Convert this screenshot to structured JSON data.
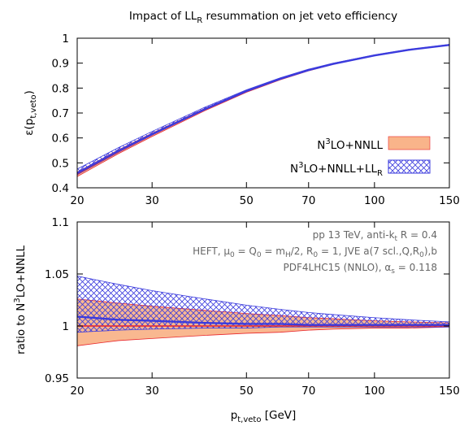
{
  "title_main": "Impact of LL",
  "title_sub": "R",
  "title_rest": " resummation on jet veto efficiency",
  "xlabel_main": "p",
  "xlabel_sub": "t,veto",
  "xlabel_rest": " [GeV]",
  "top_ylabel_main": "ε(p",
  "top_ylabel_sub": "t,veto",
  "top_ylabel_rest": ")",
  "bottom_ylabel_main": "ratio to N",
  "bottom_ylabel_sup": "3",
  "bottom_ylabel_rest": "LO+NNLL",
  "legend": {
    "entry1": {
      "pre": "N",
      "sup": "3",
      "post": "LO+NNLL"
    },
    "entry2": {
      "pre": "N",
      "sup": "3",
      "post": "LO+NNLL+LL",
      "sub": "R"
    }
  },
  "annotations": {
    "line1": {
      "a": "pp 13 TeV, anti-k",
      "b": "t",
      "c": " R = 0.4"
    },
    "line2": {
      "a": "HEFT, μ",
      "b": "0",
      "c": " = Q",
      "d": "0",
      "e": " = m",
      "f": "H",
      "g": "/2, R",
      "h": "0",
      "i": " = 1, JVE a(7 scl.,Q,R",
      "j": "0",
      "k": "),b"
    },
    "line3": {
      "a": "PDF4LHC15 (NNLO), α",
      "b": "s",
      "c": " = 0.118"
    }
  },
  "colors": {
    "nnll_fill": "#f9b48a",
    "nnll_line": "#e8262b",
    "llr_line": "#3b3bdd",
    "llr_hatch": "#3b3bdd",
    "annotation_text": "#666666"
  },
  "chart_data": [
    {
      "type": "area",
      "panel": "top",
      "xscale": "log",
      "xlim": [
        20,
        150
      ],
      "ylim": [
        0.4,
        1.0
      ],
      "x_ticks": [
        "20",
        "30",
        "50",
        "70",
        "100",
        "150"
      ],
      "y_ticks": [
        "0.4",
        "0.5",
        "0.6",
        "0.7",
        "0.8",
        "0.9",
        "1"
      ],
      "x": [
        20,
        25,
        30,
        40,
        50,
        60,
        70,
        80,
        100,
        120,
        150
      ],
      "series": [
        {
          "name": "N3LO+NNLL",
          "central": [
            0.455,
            0.545,
            0.613,
            0.715,
            0.787,
            0.836,
            0.872,
            0.897,
            0.931,
            0.953,
            0.973
          ],
          "low": [
            0.445,
            0.537,
            0.606,
            0.71,
            0.783,
            0.833,
            0.869,
            0.895,
            0.93,
            0.952,
            0.972
          ],
          "high": [
            0.463,
            0.552,
            0.619,
            0.719,
            0.79,
            0.839,
            0.874,
            0.899,
            0.932,
            0.954,
            0.974
          ]
        },
        {
          "name": "N3LO+NNLL+LLR",
          "central": [
            0.459,
            0.548,
            0.615,
            0.716,
            0.788,
            0.837,
            0.872,
            0.897,
            0.931,
            0.953,
            0.973
          ],
          "low": [
            0.452,
            0.542,
            0.611,
            0.713,
            0.786,
            0.835,
            0.871,
            0.896,
            0.93,
            0.952,
            0.972
          ],
          "high": [
            0.475,
            0.561,
            0.626,
            0.724,
            0.793,
            0.841,
            0.876,
            0.9,
            0.933,
            0.955,
            0.975
          ]
        }
      ]
    },
    {
      "type": "area",
      "panel": "bottom",
      "xscale": "log",
      "xlim": [
        20,
        150
      ],
      "ylim": [
        0.95,
        1.1
      ],
      "x_ticks": [
        "20",
        "30",
        "50",
        "70",
        "100",
        "150"
      ],
      "y_ticks": [
        "0.95",
        "1",
        "1.05",
        "1.1"
      ],
      "x": [
        20,
        25,
        30,
        40,
        50,
        60,
        70,
        80,
        100,
        120,
        150
      ],
      "series": [
        {
          "name": "N3LO+NNLL",
          "central": [
            1.0,
            1.0,
            1.0,
            1.0,
            1.0,
            1.0,
            1.0,
            1.0,
            1.0,
            1.0,
            1.0
          ],
          "low": [
            0.981,
            0.986,
            0.988,
            0.991,
            0.993,
            0.994,
            0.996,
            0.997,
            0.998,
            0.998,
            0.999
          ],
          "high": [
            1.026,
            1.022,
            1.019,
            1.015,
            1.012,
            1.01,
            1.008,
            1.007,
            1.005,
            1.004,
            1.003
          ]
        },
        {
          "name": "N3LO+NNLL+LLR",
          "central": [
            1.009,
            1.006,
            1.005,
            1.003,
            1.002,
            1.002,
            1.001,
            1.001,
            1.001,
            1.001,
            1.001
          ],
          "low": [
            0.994,
            0.996,
            0.997,
            0.998,
            0.998,
            0.999,
            0.999,
            0.999,
            0.999,
            0.999,
            0.999
          ],
          "high": [
            1.048,
            1.04,
            1.034,
            1.026,
            1.02,
            1.016,
            1.013,
            1.011,
            1.008,
            1.006,
            1.004
          ]
        }
      ]
    }
  ]
}
